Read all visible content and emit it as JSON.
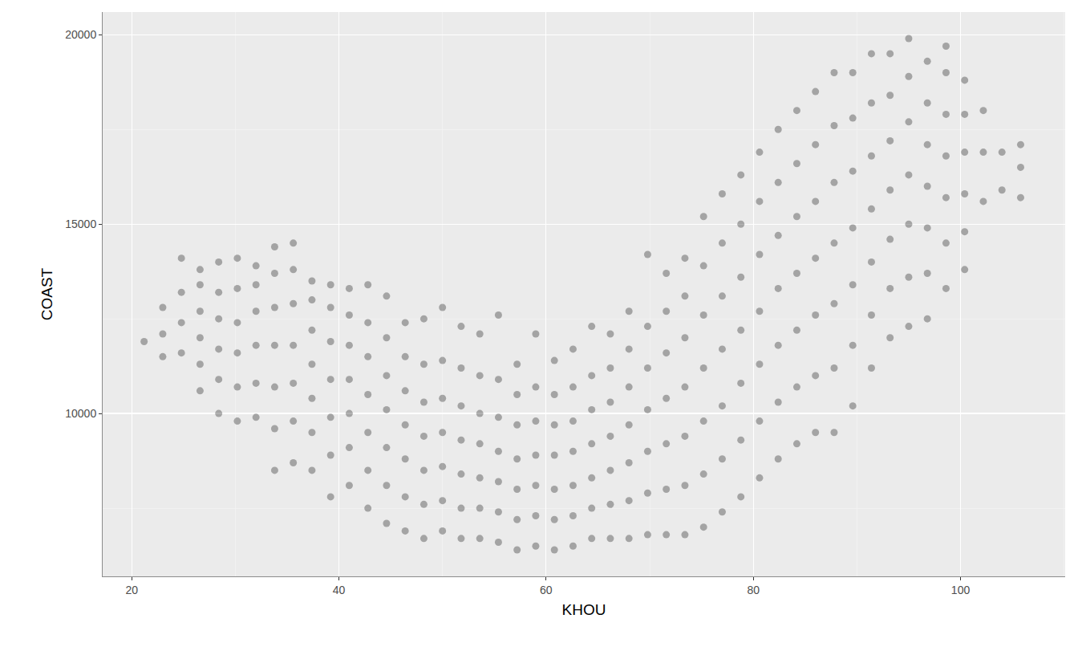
{
  "chart_data": {
    "type": "scatter",
    "x_label": "KHOU",
    "y_label": "COAST",
    "color": "#000000",
    "marker": "circle",
    "grid": true,
    "xlim": [
      17.2,
      110.1
    ],
    "xticks": [
      20,
      40,
      60,
      80,
      100
    ],
    "ylim": [
      5700,
      20600
    ],
    "yticks": [
      10000,
      15000,
      20000
    ],
    "x": [
      21.2,
      23,
      23,
      23,
      24.8,
      24.8,
      24.8,
      24.8,
      26.6,
      26.6,
      26.6,
      26.6,
      26.6,
      26.6,
      28.4,
      28.4,
      28.4,
      28.4,
      28.4,
      28.4,
      30.2,
      30.2,
      30.2,
      30.2,
      30.2,
      30.2,
      32,
      32,
      32,
      32,
      32,
      32,
      33.8,
      33.8,
      33.8,
      33.8,
      33.8,
      33.8,
      33.8,
      35.6,
      35.6,
      35.6,
      35.6,
      35.6,
      35.6,
      35.6,
      37.4,
      37.4,
      37.4,
      37.4,
      37.4,
      37.4,
      37.4,
      39.2,
      39.2,
      39.2,
      39.2,
      39.2,
      39.2,
      39.2,
      41,
      41,
      41,
      41,
      41,
      41,
      41,
      42.8,
      42.8,
      42.8,
      42.8,
      42.8,
      42.8,
      42.8,
      44.6,
      44.6,
      44.6,
      44.6,
      44.6,
      44.6,
      44.6,
      46.4,
      46.4,
      46.4,
      46.4,
      46.4,
      46.4,
      46.4,
      48.2,
      48.2,
      48.2,
      48.2,
      48.2,
      48.2,
      48.2,
      50,
      50,
      50,
      50,
      50,
      50,
      50,
      51.8,
      51.8,
      51.8,
      51.8,
      51.8,
      51.8,
      51.8,
      53.6,
      53.6,
      53.6,
      53.6,
      53.6,
      53.6,
      53.6,
      55.4,
      55.4,
      55.4,
      55.4,
      55.4,
      55.4,
      55.4,
      57.2,
      57.2,
      57.2,
      57.2,
      57.2,
      57.2,
      57.2,
      59,
      59,
      59,
      59,
      59,
      59,
      59,
      60.8,
      60.8,
      60.8,
      60.8,
      60.8,
      60.8,
      60.8,
      62.6,
      62.6,
      62.6,
      62.6,
      62.6,
      62.6,
      62.6,
      64.4,
      64.4,
      64.4,
      64.4,
      64.4,
      64.4,
      64.4,
      66.2,
      66.2,
      66.2,
      66.2,
      66.2,
      66.2,
      66.2,
      68,
      68,
      68,
      68,
      68,
      68,
      68,
      69.8,
      69.8,
      69.8,
      69.8,
      69.8,
      69.8,
      69.8,
      71.6,
      71.6,
      71.6,
      71.6,
      71.6,
      71.6,
      71.6,
      73.4,
      73.4,
      73.4,
      73.4,
      73.4,
      73.4,
      73.4,
      75.2,
      75.2,
      75.2,
      75.2,
      75.2,
      75.2,
      75.2,
      77,
      77,
      77,
      77,
      77,
      77,
      77,
      78.8,
      78.8,
      78.8,
      78.8,
      78.8,
      78.8,
      78.8,
      80.6,
      80.6,
      80.6,
      80.6,
      80.6,
      80.6,
      80.6,
      82.4,
      82.4,
      82.4,
      82.4,
      82.4,
      82.4,
      82.4,
      84.2,
      84.2,
      84.2,
      84.2,
      84.2,
      84.2,
      84.2,
      86,
      86,
      86,
      86,
      86,
      86,
      86,
      87.8,
      87.8,
      87.8,
      87.8,
      87.8,
      87.8,
      87.8,
      89.6,
      89.6,
      89.6,
      89.6,
      89.6,
      89.6,
      89.6,
      91.4,
      91.4,
      91.4,
      91.4,
      91.4,
      91.4,
      91.4,
      93.2,
      93.2,
      93.2,
      93.2,
      93.2,
      93.2,
      93.2,
      95,
      95,
      95,
      95,
      95,
      95,
      95,
      96.8,
      96.8,
      96.8,
      96.8,
      96.8,
      96.8,
      96.8,
      98.6,
      98.6,
      98.6,
      98.6,
      98.6,
      98.6,
      98.6,
      100.4,
      100.4,
      100.4,
      100.4,
      100.4,
      100.4,
      102.2,
      102.2,
      102.2,
      104,
      104,
      105.8,
      105.8,
      105.8
    ],
    "values": [
      11900,
      11500,
      12100,
      12800,
      11600,
      12400,
      13200,
      14100,
      10600,
      11300,
      12000,
      12700,
      13400,
      13800,
      10000,
      10900,
      11700,
      12500,
      13200,
      14000,
      9800,
      10700,
      11600,
      12400,
      13300,
      14100,
      9900,
      10800,
      11800,
      12700,
      13400,
      13900,
      8500,
      9600,
      10700,
      11800,
      12800,
      13700,
      14400,
      8700,
      9800,
      10800,
      11800,
      12900,
      13800,
      14500,
      8500,
      9500,
      10400,
      11300,
      12200,
      13000,
      13500,
      7800,
      8900,
      9900,
      10900,
      11900,
      12800,
      13400,
      8100,
      9100,
      10000,
      10900,
      11800,
      12600,
      13300,
      7500,
      8500,
      9500,
      10500,
      11500,
      12400,
      13400,
      7100,
      8100,
      9100,
      10100,
      11000,
      12000,
      13100,
      6900,
      7800,
      8800,
      9700,
      10600,
      11500,
      12400,
      6700,
      7600,
      8500,
      9400,
      10300,
      11300,
      12500,
      6900,
      7700,
      8600,
      9500,
      10400,
      11400,
      12800,
      6700,
      7500,
      8400,
      9300,
      10200,
      11200,
      12300,
      6700,
      7500,
      8300,
      9200,
      10000,
      11000,
      12100,
      6600,
      7400,
      8200,
      9000,
      9900,
      10900,
      12600,
      6400,
      7200,
      8000,
      8800,
      9700,
      10500,
      11300,
      6500,
      7300,
      8100,
      8900,
      9800,
      10700,
      12100,
      6400,
      7200,
      8000,
      8900,
      9700,
      10500,
      11400,
      6500,
      7300,
      8100,
      9000,
      9800,
      10700,
      11700,
      6700,
      7500,
      8300,
      9200,
      10100,
      11000,
      12300,
      6700,
      7600,
      8500,
      9400,
      10300,
      11200,
      12100,
      6700,
      7700,
      8700,
      9700,
      10700,
      11700,
      12700,
      6800,
      7900,
      9000,
      10100,
      11200,
      12300,
      14200,
      6800,
      8000,
      9200,
      10400,
      11600,
      12700,
      13700,
      6800,
      8100,
      9400,
      10700,
      12000,
      13100,
      14100,
      7000,
      8400,
      9800,
      11200,
      12600,
      13900,
      15200,
      7400,
      8800,
      10200,
      11700,
      13100,
      14500,
      15800,
      7800,
      9300,
      10800,
      12200,
      13600,
      15000,
      16300,
      8300,
      9800,
      11300,
      12700,
      14200,
      15600,
      16900,
      8800,
      10300,
      11800,
      13300,
      14700,
      16100,
      17500,
      9200,
      10700,
      12200,
      13700,
      15200,
      16600,
      18000,
      9500,
      11000,
      12600,
      14100,
      15600,
      17100,
      18500,
      9500,
      11200,
      12900,
      14500,
      16100,
      17600,
      19000,
      10200,
      11800,
      13400,
      14900,
      16400,
      17800,
      19000,
      11200,
      12600,
      14000,
      15400,
      16800,
      18200,
      19500,
      12000,
      13300,
      14600,
      15900,
      17200,
      18400,
      19500,
      12300,
      13600,
      15000,
      16300,
      17700,
      18900,
      19900,
      12500,
      13700,
      14900,
      16000,
      17100,
      18200,
      19300,
      13300,
      14500,
      15700,
      16800,
      17900,
      19000,
      19700,
      13800,
      14800,
      15800,
      16900,
      17900,
      18800,
      15600,
      16900,
      18000,
      15900,
      16900,
      15700,
      16500,
      17100
    ]
  }
}
